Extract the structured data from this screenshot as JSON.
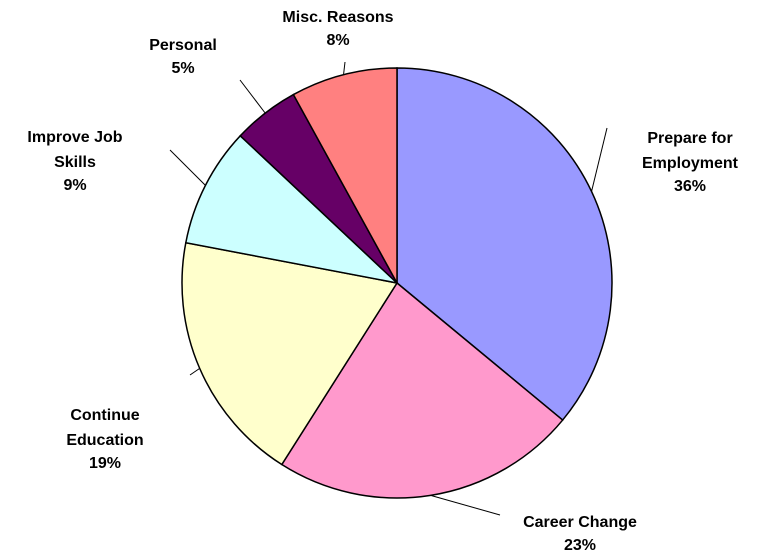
{
  "chart_data": {
    "type": "pie",
    "categories": [
      "Prepare for Employment",
      "Career Change",
      "Continue Education",
      "Improve Job Skills",
      "Personal",
      "Misc. Reasons"
    ],
    "values": [
      36,
      23,
      19,
      9,
      5,
      8
    ],
    "value_labels": [
      "36%",
      "23%",
      "19%",
      "9%",
      "5%",
      "8%"
    ],
    "colors": [
      "#9999ff",
      "#ff99cc",
      "#ffffcc",
      "#ccffff",
      "#660066",
      "#ff8080"
    ]
  }
}
